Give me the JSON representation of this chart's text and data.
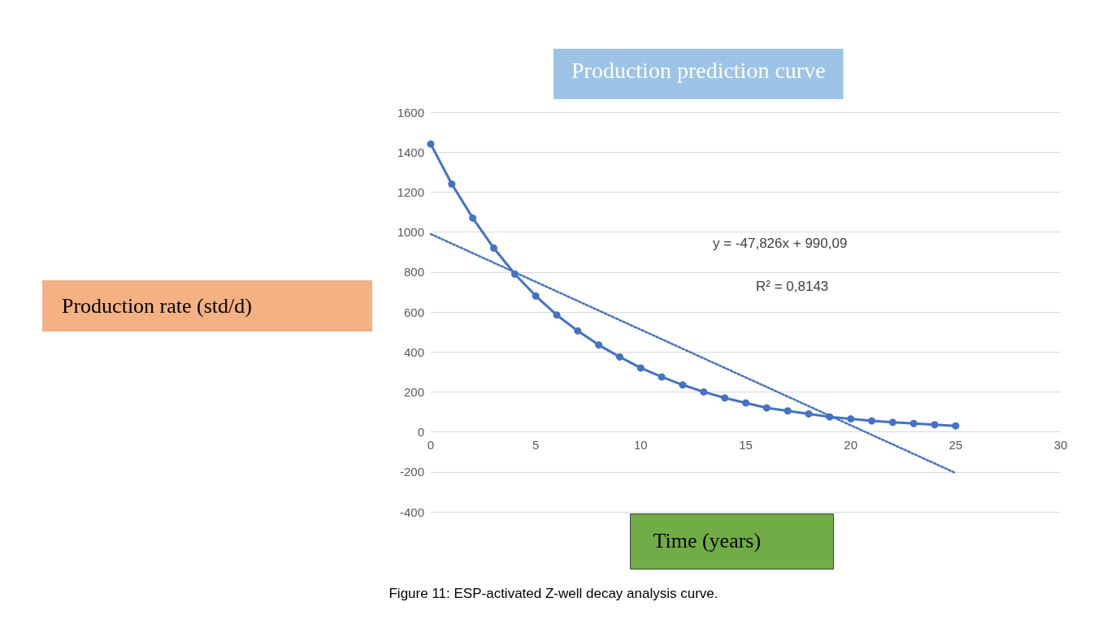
{
  "chart_data": {
    "type": "line",
    "title": "Production prediction curve",
    "xlabel": "Time (years)",
    "x": [
      0,
      1,
      2,
      3,
      4,
      5,
      6,
      7,
      8,
      9,
      10,
      11,
      12,
      13,
      14,
      15,
      16,
      17,
      18,
      19,
      20,
      21,
      22,
      23,
      24,
      25
    ],
    "series": [
      {
        "color": "#4472c4",
        "values": [
          1440,
          1240,
          1070,
          920,
          790,
          680,
          585,
          505,
          435,
          375,
          320,
          275,
          235,
          200,
          170,
          145,
          120,
          105,
          90,
          75,
          65,
          55,
          48,
          42,
          36,
          30
        ]
      },
      {
        "type": "line",
        "color": "#4472c4",
        "x": [
          0,
          25
        ],
        "values": [
          990,
          -206
        ],
        "line_style": "dotted",
        "marker": "none"
      }
    ],
    "xlim": [
      0,
      30
    ],
    "xticks": [
      0,
      5,
      10,
      15,
      20,
      25,
      30
    ],
    "ylim": [
      -400,
      1600
    ],
    "yticks": [
      -400,
      -200,
      0,
      200,
      400,
      600,
      800,
      1000,
      1200,
      1400,
      1600
    ],
    "grid": "y",
    "marker": "circle",
    "line_style": "solid",
    "annotations": [
      "y = -47,826x + 990,09",
      "R² = 0,8143",
      "Figure 11: ESP-activated Z-well decay analysis curve.",
      "Production rate (std/d)"
    ]
  }
}
